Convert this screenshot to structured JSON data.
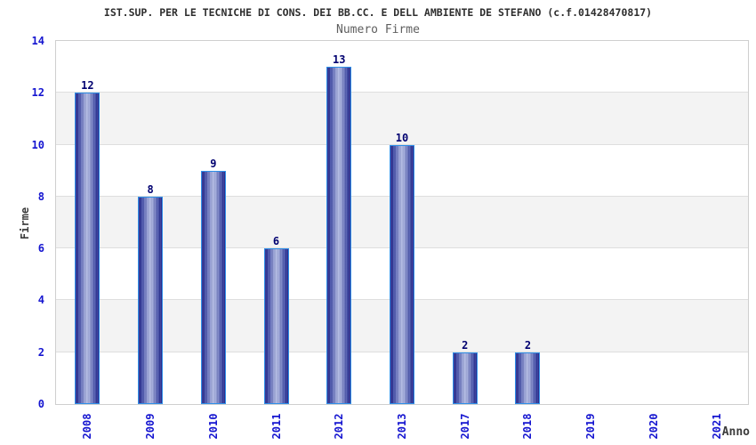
{
  "chart_data": {
    "type": "bar",
    "title": "IST.SUP. PER LE TECNICHE DI CONS. DEI BB.CC. E DELL AMBIENTE DE STEFANO (c.f.01428470817)",
    "subtitle": "Numero Firme",
    "xlabel": "Anno",
    "ylabel": "Firme",
    "categories": [
      "2008",
      "2009",
      "2010",
      "2011",
      "2012",
      "2013",
      "2017",
      "2018",
      "2019",
      "2020",
      "2021"
    ],
    "values": [
      12,
      8,
      9,
      6,
      13,
      10,
      2,
      2,
      0,
      0,
      0
    ],
    "ylim": [
      0,
      14
    ],
    "yticks": [
      0,
      2,
      4,
      6,
      8,
      10,
      12,
      14
    ],
    "grid": "horizontal lines every 2 units with alternating gray bands",
    "legend": "none",
    "bar_labels_shown": true
  },
  "colors": {
    "background": "#ffffff",
    "plot-border": "#cfcfcf",
    "gridline": "#dedede",
    "band": "#f3f3f3",
    "tick-label": "#1515d0",
    "value-label": "#000070",
    "title": "#2e2e2e",
    "subtitle": "#5f5f5f",
    "axis-name": "#3c3c3c",
    "bar-edge": "#1e1e85",
    "bar-mid": "#4550aa",
    "bar-highlight": "#aab3e0",
    "bar-border": "#2f8fe8"
  }
}
